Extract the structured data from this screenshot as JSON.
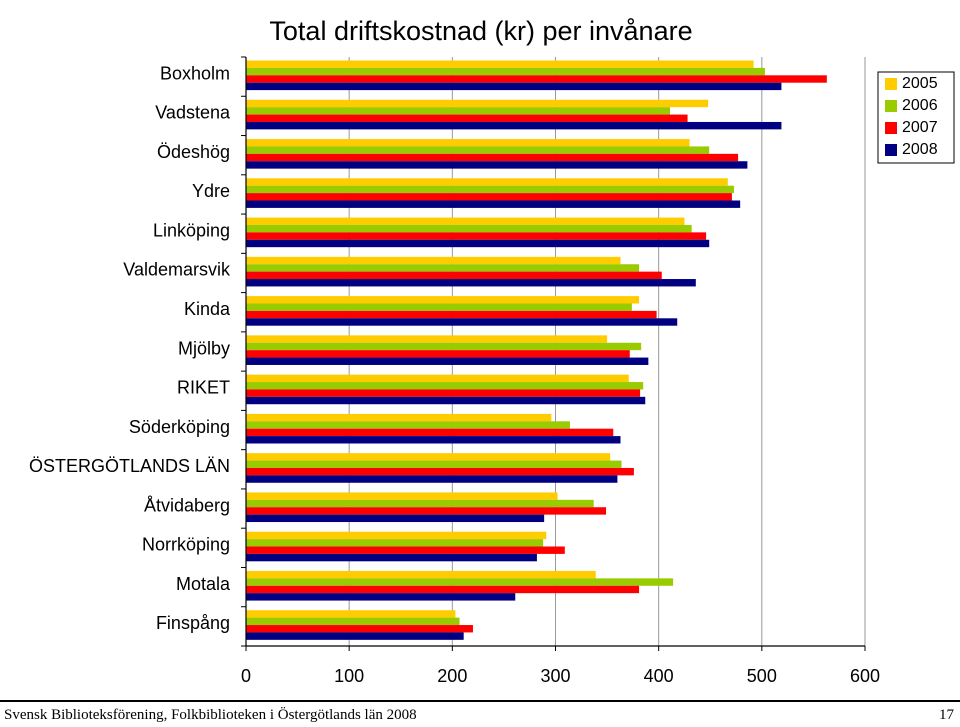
{
  "chart_data": {
    "type": "bar",
    "orientation": "horizontal",
    "title": "Total driftskostnad (kr) per invånare",
    "categories": [
      "Boxholm",
      "Vadstena",
      "Ödeshög",
      "Ydre",
      "Linköping",
      "Valdemarsvik",
      "Kinda",
      "Mjölby",
      "RIKET",
      "Söderköping",
      "ÖSTERGÖTLANDS LÄN",
      "Åtvidaberg",
      "Norrköping",
      "Motala",
      "Finspång"
    ],
    "series": [
      {
        "name": "2005",
        "color": "#FFCC00",
        "values": [
          492,
          448,
          430,
          467,
          425,
          363,
          381,
          350,
          371,
          296,
          353,
          302,
          291,
          339,
          203
        ]
      },
      {
        "name": "2006",
        "color": "#99CC00",
        "values": [
          503,
          411,
          449,
          473,
          432,
          381,
          374,
          383,
          385,
          314,
          364,
          337,
          288,
          414,
          207
        ]
      },
      {
        "name": "2007",
        "color": "#FF0000",
        "values": [
          563,
          428,
          477,
          471,
          446,
          403,
          398,
          372,
          382,
          356,
          376,
          349,
          309,
          381,
          220
        ]
      },
      {
        "name": "2008",
        "color": "#000080",
        "values": [
          519,
          519,
          486,
          479,
          449,
          436,
          418,
          390,
          387,
          363,
          360,
          289,
          282,
          261,
          211
        ]
      }
    ],
    "xlim": [
      0,
      600
    ],
    "x_ticks": [
      0,
      100,
      200,
      300,
      400,
      500,
      600
    ],
    "grid": "vertical",
    "legend_position": "top-right"
  },
  "footer": {
    "left": "Svensk Biblioteksförening, Folkbiblioteken i Östergötlands län 2008",
    "page_number": "17"
  }
}
